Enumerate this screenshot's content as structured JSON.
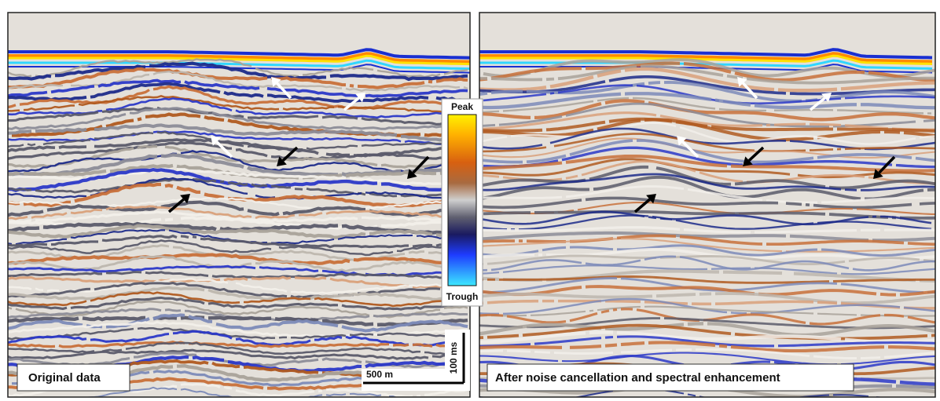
{
  "panels": [
    {
      "label": "Original data"
    },
    {
      "label": "After noise cancellation and spectral enhancement"
    }
  ],
  "colorbar": {
    "top_label": "Peak",
    "bottom_label": "Trough"
  },
  "scale_bar": {
    "horizontal": "500 m",
    "vertical": "100 ms"
  }
}
